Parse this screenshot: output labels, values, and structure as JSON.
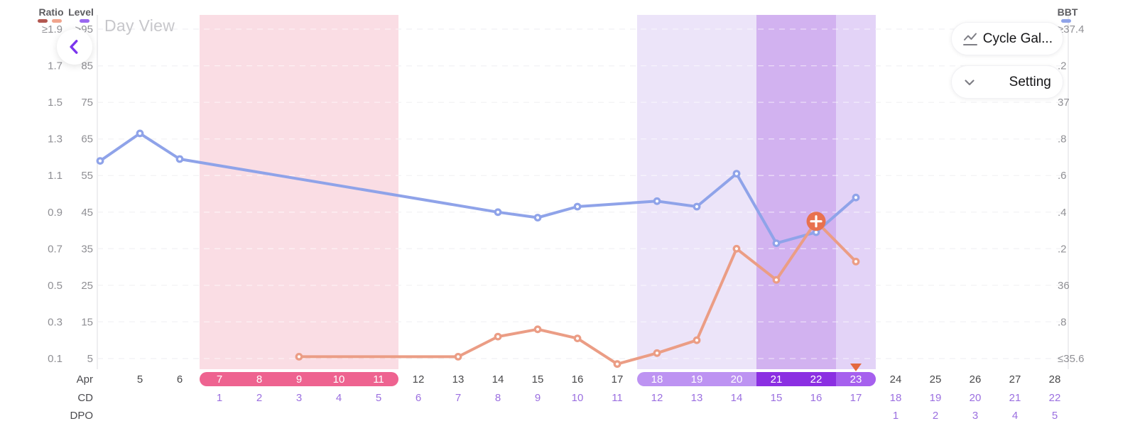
{
  "header": {
    "title": "Day View",
    "buttons": [
      {
        "id": "cycle-gallery",
        "label": "Cycle Gal...",
        "icon": "line-chart-icon"
      },
      {
        "id": "setting",
        "label": "Setting",
        "icon": "chevron-down-icon"
      }
    ]
  },
  "legend": {
    "ratio_label": "Ratio",
    "level_label": "Level",
    "bbt_label": "BBT",
    "ratio_colors": [
      "#b25750",
      "#f0a48d"
    ],
    "level_color": "#9a68f0",
    "bbt_color": "#8fa3e9"
  },
  "axes": {
    "ratio_ticks": [
      "≥1.9",
      "1.7",
      "1.5",
      "1.3",
      "1.1",
      "0.9",
      "0.7",
      "0.5",
      "0.3",
      "0.1"
    ],
    "level_ticks": [
      ">95",
      "85",
      "75",
      "65",
      "55",
      "45",
      "35",
      "25",
      "15",
      "5"
    ],
    "bbt_ticks": [
      "≥37.4",
      ".2",
      "37",
      ".8",
      ".6",
      ".4",
      ".2",
      "36",
      ".8",
      "≤35.6"
    ],
    "month_label": "Apr",
    "cd_row_label": "CD",
    "dpo_row_label": "DPO"
  },
  "chart_data": {
    "type": "line",
    "x_month": "Apr",
    "x_dates": [
      5,
      6,
      7,
      8,
      9,
      10,
      11,
      12,
      13,
      14,
      15,
      16,
      17,
      18,
      19,
      20,
      21,
      22,
      23,
      24,
      25,
      26,
      27,
      28
    ],
    "ratio_axis_range": [
      0.1,
      1.9
    ],
    "level_axis_range": [
      5,
      95
    ],
    "bbt_axis_range": [
      35.6,
      37.4
    ],
    "series": [
      {
        "name": "BBT",
        "color": "#8fa3e9",
        "axis": "bbt",
        "points": [
          [
            4,
            36.68
          ],
          [
            5,
            36.83
          ],
          [
            6,
            36.69
          ],
          [
            14,
            36.4
          ],
          [
            15,
            36.37
          ],
          [
            16,
            36.43
          ],
          [
            18,
            36.46
          ],
          [
            19,
            36.43
          ],
          [
            20,
            36.61
          ],
          [
            21,
            36.23
          ],
          [
            22,
            36.29
          ],
          [
            23,
            36.48
          ]
        ]
      },
      {
        "name": "Ratio",
        "color": "#eb9d85",
        "axis": "ratio",
        "points": [
          [
            9,
            0.11
          ],
          [
            13,
            0.11
          ],
          [
            14,
            0.22
          ],
          [
            15,
            0.26
          ],
          [
            16,
            0.21
          ],
          [
            17,
            0.07
          ],
          [
            18,
            0.13
          ],
          [
            19,
            0.2
          ],
          [
            20,
            0.7
          ],
          [
            21,
            0.53
          ],
          [
            22,
            0.85
          ],
          [
            23,
            0.63
          ]
        ]
      }
    ],
    "bands": [
      {
        "name": "period-band",
        "color": "#fadde4",
        "from_day": 7,
        "to_day": 11
      },
      {
        "name": "fertile-window-band",
        "color": "#ece4f9",
        "from_day": 18,
        "to_day": 20
      },
      {
        "name": "peak-days-band",
        "color": "#d2b2f0",
        "from_day": 21,
        "to_day": 22
      },
      {
        "name": "ovulation-day-band",
        "color": "#e3d3f7",
        "from_day": 23,
        "to_day": 23
      }
    ],
    "date_pills": [
      {
        "name": "period-days-pill",
        "segments": [
          {
            "from_day": 7,
            "to_day": 11,
            "color": "#ee6390"
          }
        ]
      },
      {
        "name": "fertile-days-pill",
        "segments": [
          {
            "from_day": 18,
            "to_day": 20,
            "color": "#bd93f2"
          },
          {
            "from_day": 21,
            "to_day": 22,
            "color": "#8b2fe2"
          },
          {
            "from_day": 23,
            "to_day": 23,
            "color": "#a660ee"
          }
        ]
      }
    ],
    "cd_numbers": {
      "start_day": 7,
      "values": [
        1,
        2,
        3,
        4,
        5,
        6,
        7,
        8,
        9,
        10,
        11,
        12,
        13,
        14,
        15,
        16,
        17,
        18,
        19,
        20,
        21,
        22
      ]
    },
    "dpo_numbers": {
      "start_day": 24,
      "values": [
        1,
        2,
        3,
        4,
        5
      ]
    },
    "ovulation_marker_day": 23,
    "add_badge": {
      "day": 22,
      "series": "Ratio",
      "value": 0.85,
      "color": "#e8714f"
    },
    "palette": {
      "date_text": "#48484a",
      "pill_date_text": "#ffffff",
      "cd_dpo_text": "#9b6fe0",
      "row_label_text": "#4a4a4e",
      "tick_text": "#8f8f94",
      "grid": "#e6e6ea",
      "axis_line": "#e4e4e8",
      "marker_triangle": "#e4693f"
    }
  }
}
